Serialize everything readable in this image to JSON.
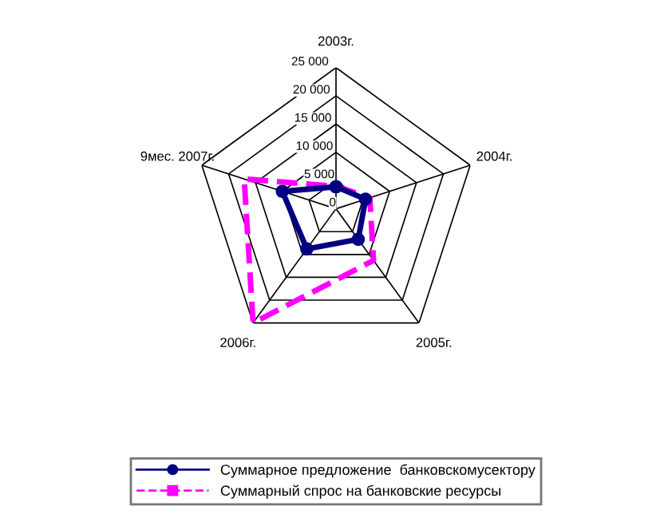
{
  "chart_data": {
    "type": "radar",
    "categories": [
      "2003г.",
      "2004г.",
      "2005г.",
      "2006г.",
      "9мес. 2007г."
    ],
    "series": [
      {
        "name": "Суммарное предложение  банковскомусектору",
        "color": "#000080",
        "marker": "circle",
        "line_style": "solid",
        "values": [
          3900,
          5500,
          6700,
          8800,
          10000
        ]
      },
      {
        "name": "Суммарный спрос на банковские ресурсы",
        "color": "#ff00ff",
        "marker": "square",
        "line_style": "dashed",
        "values": [
          4000,
          6300,
          11300,
          25000,
          17100
        ]
      }
    ],
    "ylim": [
      0,
      25000
    ],
    "yticks": [
      0,
      {
        "value": 5000,
        "label": "5 000"
      },
      {
        "value": 10000,
        "label": "10 000"
      },
      {
        "value": 15000,
        "label": "15 000"
      },
      {
        "value": 20000,
        "label": "20 000"
      },
      {
        "value": 25000,
        "label": "25 000"
      }
    ],
    "grid": true,
    "legend": "bottom"
  }
}
